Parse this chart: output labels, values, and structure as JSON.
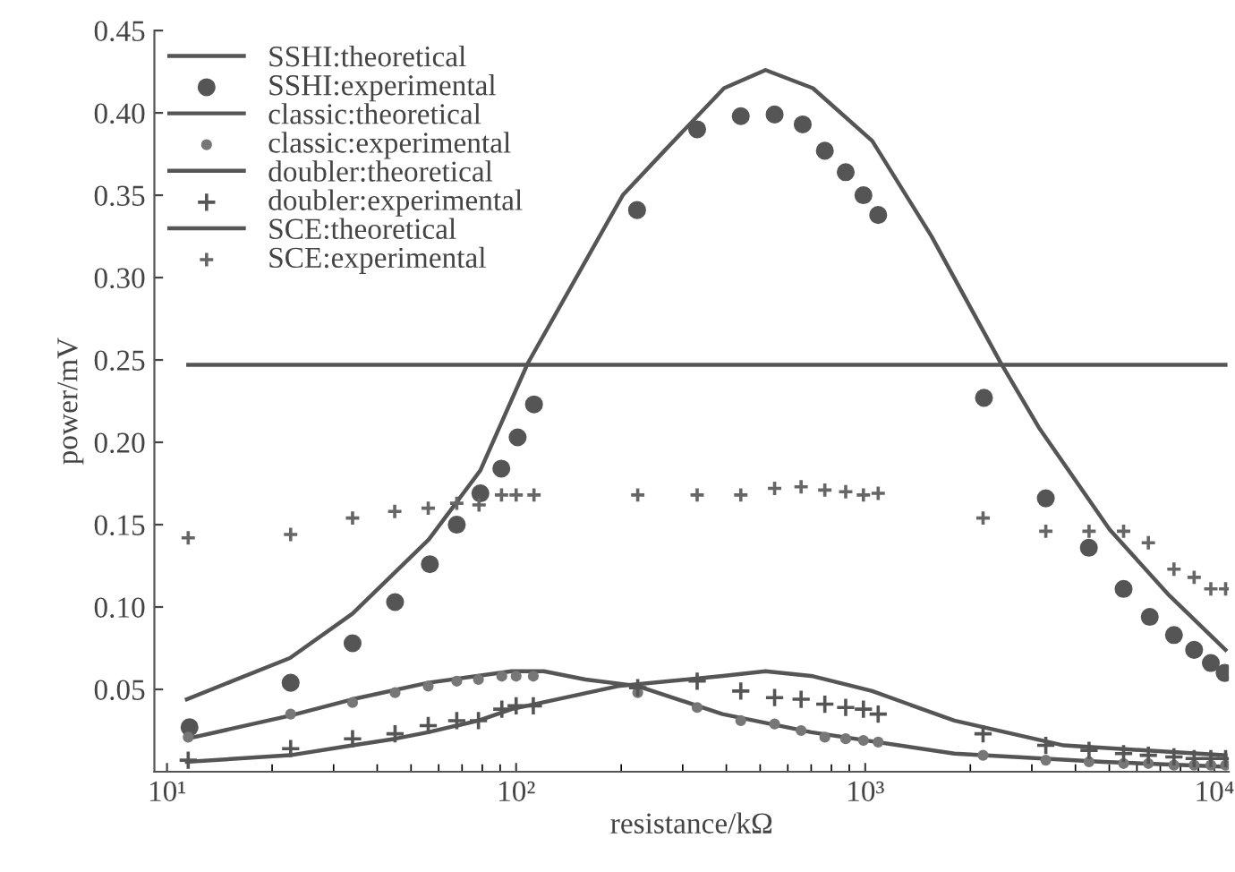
{
  "chart_data": {
    "type": "line",
    "xlabel": "resistance/kΩ",
    "ylabel": "power/mV",
    "log": "x",
    "xlim": [
      9.2,
      11000
    ],
    "xticks": [
      {
        "value": 10,
        "label": "10¹"
      },
      {
        "value": 100,
        "label": "10²"
      },
      {
        "value": 1000,
        "label": "10³"
      },
      {
        "value": 10000,
        "label": "10⁴"
      }
    ],
    "ylim": [
      0,
      0.45
    ],
    "yticks": [
      0.05,
      {
        "value": 0.1,
        "label": "0.10"
      },
      0.15,
      {
        "value": 0.2,
        "label": "0.20"
      },
      0.25,
      {
        "value": 0.3,
        "label": "0.30"
      },
      0.35,
      {
        "value": 0.4,
        "label": "0.40"
      },
      0.45
    ],
    "grid": false,
    "legend": "top left",
    "series": [
      {
        "name": "SSHI:theoretical",
        "marker": "none",
        "line_style": "solid",
        "color": "#555555",
        "x": [
          11.4,
          22.5,
          34,
          56.2,
          79,
          108,
          202,
          266,
          394,
          518,
          708,
          1047,
          1549,
          2432,
          3141,
          5012,
          7430,
          10760
        ],
        "values": [
          0.044,
          0.069,
          0.096,
          0.141,
          0.183,
          0.248,
          0.35,
          0.377,
          0.415,
          0.426,
          0.415,
          0.383,
          0.325,
          0.249,
          0.209,
          0.147,
          0.107,
          0.074
        ]
      },
      {
        "name": "SSHI:experimental",
        "type": "scatter",
        "marker": "circle",
        "color": "#555555",
        "x": [
          11.6,
          22.6,
          34,
          45,
          56.6,
          67.6,
          79,
          90.7,
          101,
          112.5,
          222,
          330,
          440,
          550,
          662,
          766,
          879,
          988,
          1089,
          2188,
          3290,
          4370,
          5495,
          6530,
          7660,
          8750,
          9770,
          10700
        ],
        "values": [
          0.027,
          0.054,
          0.078,
          0.103,
          0.126,
          0.15,
          0.169,
          0.184,
          0.203,
          0.223,
          0.341,
          0.39,
          0.398,
          0.399,
          0.393,
          0.377,
          0.364,
          0.35,
          0.338,
          0.227,
          0.166,
          0.136,
          0.111,
          0.094,
          0.083,
          0.074,
          0.066,
          0.06
        ]
      },
      {
        "name": "classic:theoretical",
        "marker": "none",
        "line_style": "solid",
        "color": "#555555",
        "x": [
          11.4,
          22.5,
          34,
          56,
          97,
          120,
          158,
          223,
          390,
          700,
          1800,
          4800,
          10760
        ],
        "values": [
          0.02,
          0.034,
          0.044,
          0.054,
          0.061,
          0.061,
          0.056,
          0.052,
          0.035,
          0.024,
          0.011,
          0.006,
          0.003
        ]
      },
      {
        "name": "classic:experimental",
        "type": "scatter",
        "marker": "circle",
        "color": "#777777",
        "x": [
          11.5,
          22.6,
          34,
          45,
          56,
          67.6,
          78,
          91,
          100,
          112,
          223,
          330,
          440,
          550,
          655,
          766,
          879,
          988,
          1089,
          2175,
          3290,
          4375,
          5495,
          6470,
          7660,
          8750,
          9770,
          10770
        ],
        "values": [
          0.021,
          0.035,
          0.042,
          0.048,
          0.052,
          0.055,
          0.056,
          0.058,
          0.058,
          0.058,
          0.048,
          0.039,
          0.031,
          0.029,
          0.025,
          0.021,
          0.02,
          0.019,
          0.018,
          0.01,
          0.007,
          0.006,
          0.005,
          0.005,
          0.004,
          0.004,
          0.004,
          0.004
        ]
      },
      {
        "name": "doubler:theoretical",
        "marker": "none",
        "line_style": "solid",
        "color": "#555555",
        "x": [
          11.4,
          22.5,
          34,
          45,
          56,
          67.6,
          78,
          97,
          196,
          386,
          518,
          708,
          1047,
          1800,
          3700,
          10760
        ],
        "values": [
          0.006,
          0.01,
          0.016,
          0.02,
          0.024,
          0.028,
          0.031,
          0.038,
          0.052,
          0.058,
          0.061,
          0.058,
          0.049,
          0.031,
          0.016,
          0.01
        ]
      },
      {
        "name": "doubler:experimental",
        "type": "scatter",
        "marker": "cross",
        "color": "#555555",
        "x": [
          11.5,
          22.6,
          34,
          45,
          56,
          67.6,
          78,
          91,
          100,
          112,
          223,
          330,
          440,
          550,
          655,
          766,
          879,
          988,
          1089,
          2175,
          3290,
          4375,
          5495,
          6470,
          7660,
          8750,
          9770,
          10770
        ],
        "values": [
          0.007,
          0.014,
          0.02,
          0.023,
          0.028,
          0.031,
          0.031,
          0.038,
          0.04,
          0.04,
          0.051,
          0.055,
          0.049,
          0.045,
          0.044,
          0.041,
          0.039,
          0.038,
          0.035,
          0.023,
          0.016,
          0.013,
          0.011,
          0.01,
          0.009,
          0.008,
          0.008,
          0.008
        ]
      },
      {
        "name": "SCE:theoretical",
        "marker": "none",
        "line_style": "solid",
        "color": "#555555",
        "x": [
          11.5,
          10760
        ],
        "values": [
          0.247,
          0.247
        ]
      },
      {
        "name": "SCE:experimental",
        "type": "scatter",
        "marker": "cross",
        "color": "#666666",
        "x": [
          11.5,
          22.6,
          34,
          44.9,
          56,
          67.6,
          78.3,
          90.8,
          100,
          112.5,
          223,
          330,
          440,
          550,
          655,
          766,
          879,
          988,
          1089,
          2175,
          3290,
          4375,
          5495,
          6470,
          7660,
          8750,
          9770,
          10770
        ],
        "values": [
          0.142,
          0.144,
          0.154,
          0.158,
          0.16,
          0.163,
          0.162,
          0.168,
          0.168,
          0.168,
          0.168,
          0.168,
          0.168,
          0.172,
          0.173,
          0.171,
          0.17,
          0.168,
          0.169,
          0.154,
          0.146,
          0.146,
          0.146,
          0.139,
          0.123,
          0.118,
          0.111,
          0.111
        ]
      }
    ]
  }
}
